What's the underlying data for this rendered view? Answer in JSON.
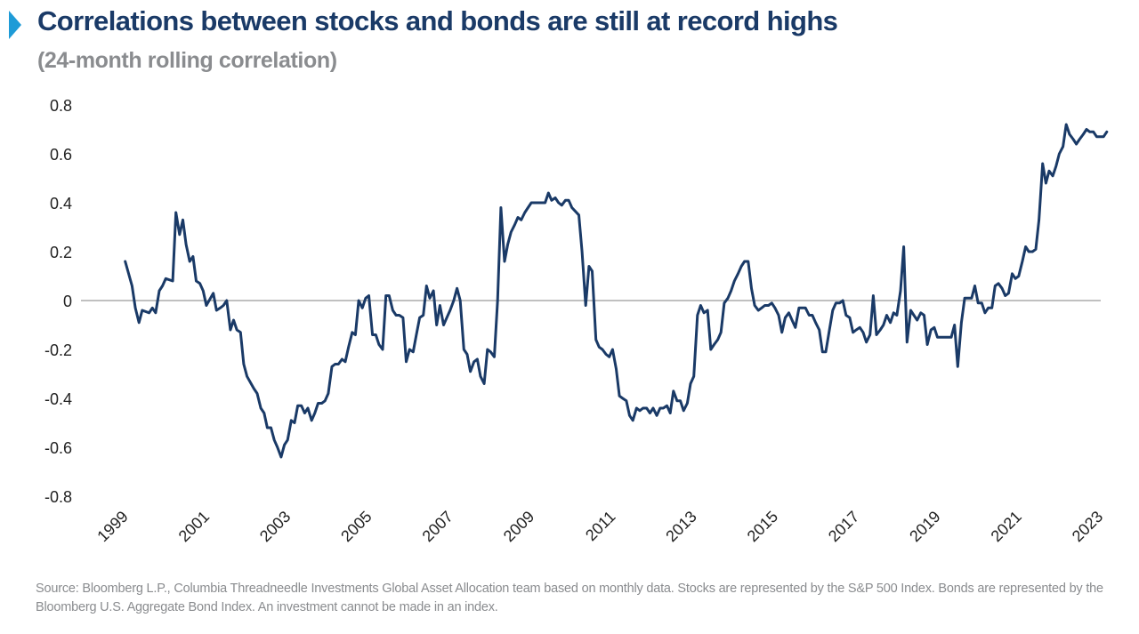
{
  "title": "Correlations between stocks and bonds are still at record highs",
  "subtitle": "(24-month rolling correlation)",
  "source": "Source: Bloomberg L.P., Columbia Threadneedle Investments Global Asset Allocation team based on monthly data. Stocks are represented by the S&P 500 Index. Bonds are represented by the Bloomberg U.S. Aggregate Bond Index. An investment cannot be made in an index.",
  "colors": {
    "line": "#1a3a67",
    "accent": "#1e9bd7",
    "zero_line": "#808080",
    "axis_text": "#222222",
    "muted_text": "#8a8c8f"
  },
  "chart_data": {
    "type": "line",
    "ylim": [
      -0.8,
      0.8
    ],
    "yticks": [
      "0.8",
      "0.6",
      "0.4",
      "0.2",
      "0",
      "-0.2",
      "-0.4",
      "-0.6",
      "-0.8"
    ],
    "ytick_values": [
      0.8,
      0.6,
      0.4,
      0.2,
      0,
      -0.2,
      -0.4,
      -0.6,
      -0.8
    ],
    "xticks": [
      "1999",
      "2001",
      "2003",
      "2005",
      "2007",
      "2009",
      "2011",
      "2013",
      "2015",
      "2017",
      "2019",
      "2021",
      "2023"
    ],
    "xtick_values": [
      1999,
      2001,
      2003,
      2005,
      2007,
      2009,
      2011,
      2013,
      2015,
      2017,
      2019,
      2021,
      2023
    ],
    "xlim": [
      1999,
      2023.1
    ],
    "grid": false,
    "series": [
      {
        "points": [
          [
            1999.08,
            0.16
          ],
          [
            1999.25,
            0.06
          ],
          [
            1999.33,
            -0.03
          ],
          [
            1999.42,
            -0.09
          ],
          [
            1999.5,
            -0.04
          ],
          [
            1999.67,
            -0.05
          ],
          [
            1999.75,
            -0.03
          ],
          [
            1999.83,
            -0.05
          ],
          [
            1999.92,
            0.04
          ],
          [
            2000.0,
            0.06
          ],
          [
            2000.08,
            0.09
          ],
          [
            2000.25,
            0.08
          ],
          [
            2000.33,
            0.36
          ],
          [
            2000.42,
            0.27
          ],
          [
            2000.5,
            0.33
          ],
          [
            2000.58,
            0.23
          ],
          [
            2000.67,
            0.16
          ],
          [
            2000.75,
            0.18
          ],
          [
            2000.83,
            0.08
          ],
          [
            2000.92,
            0.07
          ],
          [
            2001.0,
            0.04
          ],
          [
            2001.08,
            -0.02
          ],
          [
            2001.25,
            0.03
          ],
          [
            2001.33,
            -0.04
          ],
          [
            2001.42,
            -0.03
          ],
          [
            2001.5,
            -0.02
          ],
          [
            2001.58,
            0.0
          ],
          [
            2001.67,
            -0.12
          ],
          [
            2001.75,
            -0.08
          ],
          [
            2001.83,
            -0.12
          ],
          [
            2001.92,
            -0.13
          ],
          [
            2002.0,
            -0.26
          ],
          [
            2002.08,
            -0.31
          ],
          [
            2002.25,
            -0.36
          ],
          [
            2002.33,
            -0.38
          ],
          [
            2002.42,
            -0.44
          ],
          [
            2002.5,
            -0.46
          ],
          [
            2002.58,
            -0.52
          ],
          [
            2002.67,
            -0.52
          ],
          [
            2002.75,
            -0.57
          ],
          [
            2002.83,
            -0.6
          ],
          [
            2002.92,
            -0.64
          ],
          [
            2003.0,
            -0.59
          ],
          [
            2003.08,
            -0.57
          ],
          [
            2003.17,
            -0.49
          ],
          [
            2003.25,
            -0.5
          ],
          [
            2003.33,
            -0.43
          ],
          [
            2003.42,
            -0.43
          ],
          [
            2003.5,
            -0.46
          ],
          [
            2003.58,
            -0.44
          ],
          [
            2003.67,
            -0.49
          ],
          [
            2003.75,
            -0.46
          ],
          [
            2003.83,
            -0.42
          ],
          [
            2003.92,
            -0.42
          ],
          [
            2004.0,
            -0.41
          ],
          [
            2004.08,
            -0.38
          ],
          [
            2004.17,
            -0.27
          ],
          [
            2004.25,
            -0.26
          ],
          [
            2004.33,
            -0.26
          ],
          [
            2004.42,
            -0.24
          ],
          [
            2004.5,
            -0.25
          ],
          [
            2004.58,
            -0.19
          ],
          [
            2004.67,
            -0.13
          ],
          [
            2004.75,
            -0.14
          ],
          [
            2004.83,
            0.0
          ],
          [
            2004.92,
            -0.03
          ],
          [
            2005.0,
            0.01
          ],
          [
            2005.08,
            0.02
          ],
          [
            2005.17,
            -0.14
          ],
          [
            2005.25,
            -0.14
          ],
          [
            2005.33,
            -0.18
          ],
          [
            2005.42,
            -0.2
          ],
          [
            2005.5,
            0.02
          ],
          [
            2005.58,
            0.02
          ],
          [
            2005.67,
            -0.04
          ],
          [
            2005.75,
            -0.06
          ],
          [
            2005.83,
            -0.06
          ],
          [
            2005.92,
            -0.07
          ],
          [
            2006.0,
            -0.25
          ],
          [
            2006.08,
            -0.2
          ],
          [
            2006.17,
            -0.21
          ],
          [
            2006.25,
            -0.14
          ],
          [
            2006.33,
            -0.07
          ],
          [
            2006.42,
            -0.06
          ],
          [
            2006.5,
            0.06
          ],
          [
            2006.58,
            0.01
          ],
          [
            2006.67,
            0.04
          ],
          [
            2006.75,
            -0.1
          ],
          [
            2006.83,
            -0.02
          ],
          [
            2006.92,
            -0.1
          ],
          [
            2007.0,
            -0.07
          ],
          [
            2007.08,
            -0.04
          ],
          [
            2007.17,
            0.0
          ],
          [
            2007.25,
            0.05
          ],
          [
            2007.33,
            0.0
          ],
          [
            2007.42,
            -0.2
          ],
          [
            2007.5,
            -0.22
          ],
          [
            2007.58,
            -0.29
          ],
          [
            2007.67,
            -0.25
          ],
          [
            2007.75,
            -0.24
          ],
          [
            2007.83,
            -0.31
          ],
          [
            2007.92,
            -0.34
          ],
          [
            2008.0,
            -0.2
          ],
          [
            2008.08,
            -0.21
          ],
          [
            2008.17,
            -0.23
          ],
          [
            2008.25,
            0.0
          ],
          [
            2008.33,
            0.38
          ],
          [
            2008.42,
            0.16
          ],
          [
            2008.5,
            0.23
          ],
          [
            2008.58,
            0.28
          ],
          [
            2008.67,
            0.31
          ],
          [
            2008.75,
            0.34
          ],
          [
            2008.83,
            0.33
          ],
          [
            2008.92,
            0.36
          ],
          [
            2009.0,
            0.38
          ],
          [
            2009.08,
            0.4
          ],
          [
            2009.25,
            0.4
          ],
          [
            2009.33,
            0.4
          ],
          [
            2009.42,
            0.4
          ],
          [
            2009.5,
            0.44
          ],
          [
            2009.58,
            0.41
          ],
          [
            2009.67,
            0.42
          ],
          [
            2009.75,
            0.4
          ],
          [
            2009.83,
            0.39
          ],
          [
            2009.92,
            0.41
          ],
          [
            2010.0,
            0.41
          ],
          [
            2010.08,
            0.38
          ],
          [
            2010.25,
            0.35
          ],
          [
            2010.33,
            0.2
          ],
          [
            2010.42,
            -0.02
          ],
          [
            2010.5,
            0.14
          ],
          [
            2010.58,
            0.12
          ],
          [
            2010.67,
            -0.16
          ],
          [
            2010.75,
            -0.19
          ],
          [
            2010.83,
            -0.2
          ],
          [
            2010.92,
            -0.22
          ],
          [
            2011.0,
            -0.23
          ],
          [
            2011.08,
            -0.2
          ],
          [
            2011.17,
            -0.28
          ],
          [
            2011.25,
            -0.39
          ],
          [
            2011.33,
            -0.4
          ],
          [
            2011.42,
            -0.41
          ],
          [
            2011.5,
            -0.47
          ],
          [
            2011.58,
            -0.49
          ],
          [
            2011.67,
            -0.44
          ],
          [
            2011.75,
            -0.45
          ],
          [
            2011.83,
            -0.44
          ],
          [
            2011.92,
            -0.44
          ],
          [
            2012.0,
            -0.46
          ],
          [
            2012.08,
            -0.44
          ],
          [
            2012.17,
            -0.47
          ],
          [
            2012.25,
            -0.44
          ],
          [
            2012.33,
            -0.44
          ],
          [
            2012.42,
            -0.43
          ],
          [
            2012.5,
            -0.46
          ],
          [
            2012.58,
            -0.37
          ],
          [
            2012.67,
            -0.41
          ],
          [
            2012.75,
            -0.41
          ],
          [
            2012.83,
            -0.45
          ],
          [
            2012.92,
            -0.42
          ],
          [
            2013.0,
            -0.34
          ],
          [
            2013.08,
            -0.31
          ],
          [
            2013.17,
            -0.06
          ],
          [
            2013.25,
            -0.02
          ],
          [
            2013.33,
            -0.05
          ],
          [
            2013.42,
            -0.04
          ],
          [
            2013.5,
            -0.2
          ],
          [
            2013.58,
            -0.18
          ],
          [
            2013.67,
            -0.16
          ],
          [
            2013.75,
            -0.13
          ],
          [
            2013.83,
            -0.01
          ],
          [
            2013.92,
            0.01
          ],
          [
            2014.0,
            0.04
          ],
          [
            2014.08,
            0.08
          ],
          [
            2014.17,
            0.11
          ],
          [
            2014.25,
            0.14
          ],
          [
            2014.33,
            0.16
          ],
          [
            2014.42,
            0.16
          ],
          [
            2014.5,
            0.05
          ],
          [
            2014.58,
            -0.02
          ],
          [
            2014.67,
            -0.04
          ],
          [
            2014.75,
            -0.03
          ],
          [
            2014.83,
            -0.02
          ],
          [
            2014.92,
            -0.02
          ],
          [
            2015.0,
            -0.01
          ],
          [
            2015.08,
            -0.03
          ],
          [
            2015.17,
            -0.06
          ],
          [
            2015.25,
            -0.13
          ],
          [
            2015.33,
            -0.07
          ],
          [
            2015.42,
            -0.05
          ],
          [
            2015.5,
            -0.08
          ],
          [
            2015.58,
            -0.11
          ],
          [
            2015.67,
            -0.03
          ],
          [
            2015.75,
            -0.03
          ],
          [
            2015.83,
            -0.03
          ],
          [
            2015.92,
            -0.06
          ],
          [
            2016.0,
            -0.06
          ],
          [
            2016.08,
            -0.09
          ],
          [
            2016.17,
            -0.12
          ],
          [
            2016.25,
            -0.21
          ],
          [
            2016.33,
            -0.21
          ],
          [
            2016.42,
            -0.12
          ],
          [
            2016.5,
            -0.04
          ],
          [
            2016.58,
            -0.01
          ],
          [
            2016.67,
            -0.01
          ],
          [
            2016.75,
            0.0
          ],
          [
            2016.83,
            -0.06
          ],
          [
            2016.92,
            -0.07
          ],
          [
            2017.0,
            -0.13
          ],
          [
            2017.08,
            -0.12
          ],
          [
            2017.17,
            -0.11
          ],
          [
            2017.25,
            -0.13
          ],
          [
            2017.33,
            -0.17
          ],
          [
            2017.42,
            -0.14
          ],
          [
            2017.5,
            0.02
          ],
          [
            2017.58,
            -0.14
          ],
          [
            2017.67,
            -0.12
          ],
          [
            2017.75,
            -0.1
          ],
          [
            2017.83,
            -0.06
          ],
          [
            2017.92,
            -0.09
          ],
          [
            2018.0,
            -0.05
          ],
          [
            2018.08,
            -0.06
          ],
          [
            2018.17,
            0.04
          ],
          [
            2018.25,
            0.22
          ],
          [
            2018.33,
            -0.17
          ],
          [
            2018.42,
            -0.04
          ],
          [
            2018.5,
            -0.06
          ],
          [
            2018.58,
            -0.08
          ],
          [
            2018.67,
            -0.05
          ],
          [
            2018.75,
            -0.06
          ],
          [
            2018.83,
            -0.18
          ],
          [
            2018.92,
            -0.12
          ],
          [
            2019.0,
            -0.11
          ],
          [
            2019.08,
            -0.15
          ],
          [
            2019.17,
            -0.15
          ],
          [
            2019.25,
            -0.15
          ],
          [
            2019.33,
            -0.15
          ],
          [
            2019.42,
            -0.15
          ],
          [
            2019.5,
            -0.1
          ],
          [
            2019.58,
            -0.27
          ],
          [
            2019.67,
            -0.09
          ],
          [
            2019.75,
            0.01
          ],
          [
            2019.83,
            0.01
          ],
          [
            2019.92,
            0.01
          ],
          [
            2020.0,
            0.06
          ],
          [
            2020.08,
            -0.01
          ],
          [
            2020.17,
            -0.01
          ],
          [
            2020.25,
            -0.05
          ],
          [
            2020.33,
            -0.03
          ],
          [
            2020.42,
            -0.03
          ],
          [
            2020.5,
            0.06
          ],
          [
            2020.58,
            0.07
          ],
          [
            2020.67,
            0.05
          ],
          [
            2020.75,
            0.02
          ],
          [
            2020.83,
            0.03
          ],
          [
            2020.92,
            0.11
          ],
          [
            2021.0,
            0.09
          ],
          [
            2021.08,
            0.1
          ],
          [
            2021.17,
            0.16
          ],
          [
            2021.25,
            0.22
          ],
          [
            2021.33,
            0.2
          ],
          [
            2021.42,
            0.2
          ],
          [
            2021.5,
            0.21
          ],
          [
            2021.58,
            0.33
          ],
          [
            2021.67,
            0.56
          ],
          [
            2021.75,
            0.48
          ],
          [
            2021.83,
            0.53
          ],
          [
            2021.92,
            0.51
          ],
          [
            2022.0,
            0.55
          ],
          [
            2022.08,
            0.6
          ],
          [
            2022.17,
            0.63
          ],
          [
            2022.25,
            0.72
          ],
          [
            2022.33,
            0.68
          ],
          [
            2022.42,
            0.66
          ],
          [
            2022.5,
            0.64
          ],
          [
            2022.58,
            0.66
          ],
          [
            2022.67,
            0.68
          ],
          [
            2022.75,
            0.7
          ],
          [
            2022.83,
            0.69
          ],
          [
            2022.92,
            0.69
          ],
          [
            2023.0,
            0.67
          ],
          [
            2023.08,
            0.67
          ],
          [
            2023.17,
            0.67
          ],
          [
            2023.25,
            0.69
          ]
        ]
      }
    ]
  }
}
